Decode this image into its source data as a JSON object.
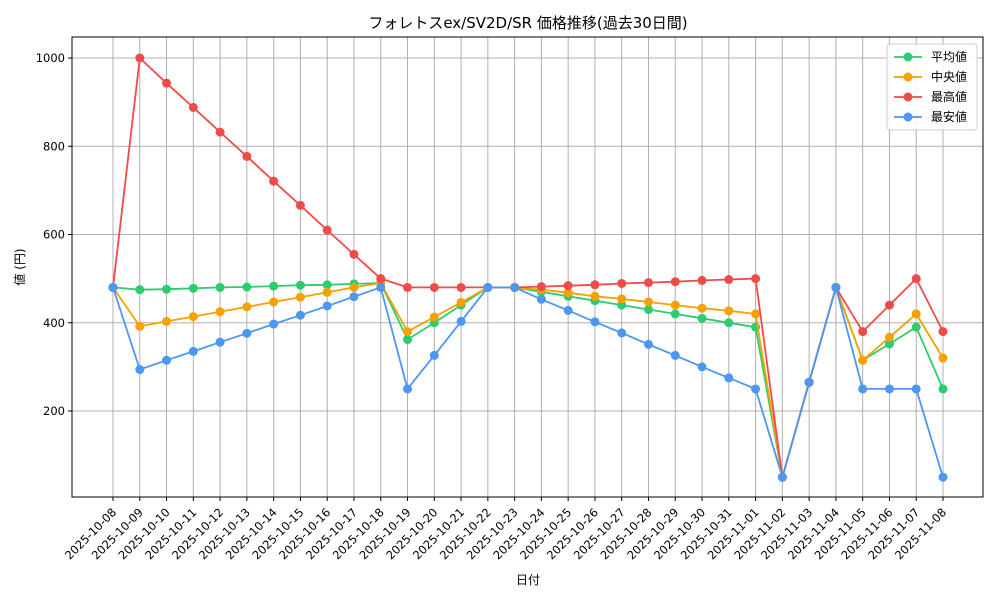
{
  "chart_data": {
    "type": "line",
    "title": "フォレトスex/SV2D/SR 価格推移(過去30日間)",
    "xlabel": "日付",
    "ylabel": "値 (円)",
    "categories": [
      "2025-10-08",
      "2025-10-09",
      "2025-10-10",
      "2025-10-11",
      "2025-10-12",
      "2025-10-13",
      "2025-10-14",
      "2025-10-15",
      "2025-10-16",
      "2025-10-17",
      "2025-10-18",
      "2025-10-19",
      "2025-10-20",
      "2025-10-21",
      "2025-10-22",
      "2025-10-23",
      "2025-10-24",
      "2025-10-25",
      "2025-10-26",
      "2025-10-27",
      "2025-10-28",
      "2025-10-29",
      "2025-10-30",
      "2025-10-31",
      "2025-11-01",
      "2025-11-02",
      "2025-11-03",
      "2025-11-04",
      "2025-11-05",
      "2025-11-06",
      "2025-11-07",
      "2025-11-08"
    ],
    "yticks": [
      200,
      400,
      600,
      800,
      1000
    ],
    "ylim": [
      0,
      1045
    ],
    "grid": true,
    "legend_position": "top-right",
    "series": [
      {
        "name": "平均値",
        "color": "#2ecc71",
        "values": [
          480,
          475,
          476,
          478,
          480,
          481,
          483,
          485,
          486,
          488,
          490,
          362,
          400,
          440,
          480,
          480,
          470,
          460,
          450,
          440,
          430,
          420,
          410,
          400,
          390,
          50,
          265,
          480,
          315,
          352,
          390,
          250
        ]
      },
      {
        "name": "中央値",
        "color": "#f5a100",
        "values": [
          480,
          392,
          403,
          414,
          425,
          436,
          447,
          458,
          469,
          480,
          490,
          380,
          413,
          446,
          480,
          480,
          475,
          468,
          460,
          454,
          447,
          440,
          433,
          427,
          420,
          50,
          265,
          480,
          315,
          367,
          420,
          320
        ]
      },
      {
        "name": "最高値",
        "color": "#f04b4b",
        "values": [
          480,
          1000,
          943,
          888,
          832,
          777,
          721,
          666,
          610,
          555,
          500,
          480,
          480,
          480,
          480,
          480,
          482,
          484,
          486,
          489,
          491,
          493,
          496,
          498,
          500,
          50,
          265,
          480,
          380,
          440,
          500,
          380
        ]
      },
      {
        "name": "最安値",
        "color": "#4c97f0",
        "values": [
          480,
          294,
          315,
          335,
          356,
          376,
          397,
          417,
          438,
          459,
          480,
          250,
          326,
          403,
          480,
          480,
          453,
          428,
          402,
          377,
          351,
          326,
          300,
          275,
          250,
          50,
          265,
          480,
          250,
          250,
          250,
          50
        ]
      }
    ]
  }
}
